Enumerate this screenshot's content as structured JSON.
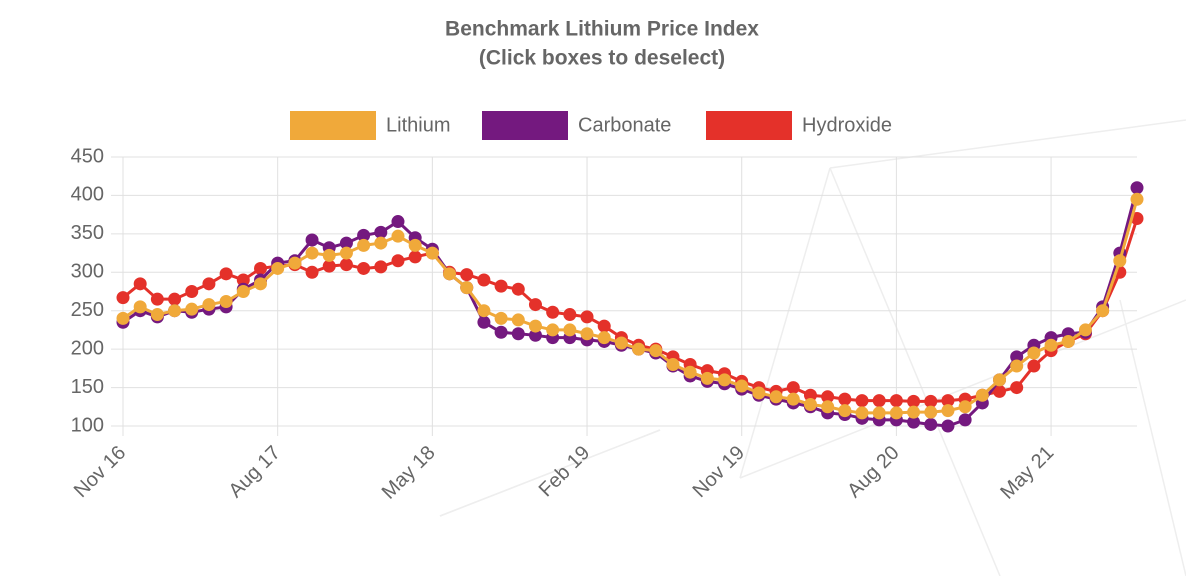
{
  "chart_data": {
    "type": "line",
    "title": [
      "Benchmark Lithium Price Index",
      "(Click boxes to deselect)"
    ],
    "categories": [
      "Nov 16",
      null,
      null,
      null,
      null,
      null,
      null,
      null,
      null,
      "Aug 17",
      null,
      null,
      null,
      null,
      null,
      null,
      null,
      null,
      "May 18",
      null,
      null,
      null,
      null,
      null,
      null,
      null,
      null,
      "Feb 19",
      null,
      null,
      null,
      null,
      null,
      null,
      null,
      null,
      "Nov 19",
      null,
      null,
      null,
      null,
      null,
      null,
      null,
      null,
      "Aug 20",
      null,
      null,
      null,
      null,
      null,
      null,
      null,
      null,
      "May 21",
      null,
      null,
      null,
      null,
      null
    ],
    "series": [
      {
        "name": "Lithium",
        "color": "#f0a93a",
        "values": [
          240,
          255,
          245,
          250,
          252,
          258,
          262,
          275,
          285,
          305,
          312,
          325,
          322,
          325,
          335,
          338,
          347,
          335,
          325,
          298,
          280,
          250,
          240,
          238,
          230,
          225,
          225,
          220,
          215,
          208,
          200,
          198,
          180,
          170,
          162,
          160,
          152,
          143,
          138,
          135,
          128,
          125,
          120,
          117,
          117,
          117,
          118,
          118,
          120,
          125,
          140,
          160,
          178,
          195,
          205,
          210,
          225,
          250,
          315,
          395
        ]
      },
      {
        "name": "Carbonate",
        "color": "#74197f",
        "values": [
          235,
          250,
          242,
          250,
          248,
          252,
          255,
          278,
          290,
          312,
          315,
          342,
          332,
          338,
          348,
          352,
          366,
          345,
          330,
          298,
          280,
          235,
          222,
          220,
          218,
          215,
          215,
          212,
          210,
          205,
          200,
          195,
          178,
          165,
          158,
          155,
          148,
          140,
          135,
          130,
          125,
          117,
          115,
          110,
          108,
          108,
          105,
          102,
          100,
          108,
          130,
          160,
          190,
          205,
          215,
          220,
          222,
          255,
          325,
          410
        ]
      },
      {
        "name": "Hydroxide",
        "color": "#e4312a",
        "values": [
          267,
          285,
          265,
          265,
          275,
          285,
          298,
          290,
          305,
          308,
          310,
          300,
          308,
          310,
          305,
          307,
          315,
          320,
          325,
          300,
          297,
          290,
          282,
          278,
          258,
          248,
          245,
          242,
          230,
          215,
          205,
          200,
          190,
          180,
          172,
          168,
          158,
          150,
          145,
          150,
          140,
          138,
          135,
          133,
          133,
          133,
          132,
          132,
          133,
          135,
          140,
          145,
          150,
          178,
          198,
          210,
          220,
          250,
          300,
          370
        ]
      }
    ],
    "ylim": [
      100,
      450
    ],
    "yticks": [
      100,
      150,
      200,
      250,
      300,
      350,
      400,
      450
    ],
    "grid": true,
    "legend": "top"
  }
}
